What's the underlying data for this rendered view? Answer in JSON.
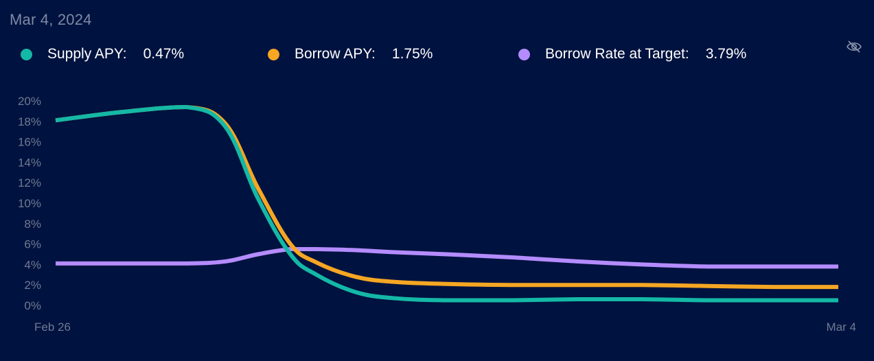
{
  "header": {
    "date": "Mar 4, 2024"
  },
  "legend": [
    {
      "label": "Supply APY:",
      "value": "0.47%",
      "color": "#14b8a6"
    },
    {
      "label": "Borrow APY:",
      "value": "1.75%",
      "color": "#f5a623"
    },
    {
      "label": "Borrow Rate at Target:",
      "value": "3.79%",
      "color": "#b48cff"
    }
  ],
  "controls": {
    "visibility_icon": "eye-slash-icon"
  },
  "colors": {
    "background": "#00123f",
    "tick_text": "#6f7a92",
    "heading_text": "#7d8aa6"
  },
  "chart_data": {
    "type": "line",
    "x": [
      0,
      0.5,
      1.0,
      1.3,
      1.55,
      1.8,
      2.0,
      2.3,
      2.6,
      3.0,
      3.5,
      4.0,
      4.5,
      5.0,
      5.5,
      6.0
    ],
    "x_tick_labels": [
      {
        "x": 0,
        "label": "Feb 26"
      },
      {
        "x": 6,
        "label": "Mar 4"
      }
    ],
    "ylim": [
      0,
      20
    ],
    "yticks": [
      0,
      2,
      4,
      6,
      8,
      10,
      12,
      14,
      16,
      18,
      20
    ],
    "ytick_labels": [
      "0%",
      "2%",
      "4%",
      "6%",
      "8%",
      "10%",
      "12%",
      "14%",
      "16%",
      "18%",
      "20%"
    ],
    "legend_position": "top",
    "grid": false,
    "series": [
      {
        "name": "Supply APY",
        "color": "#14b8a6",
        "values": [
          18.1,
          18.9,
          19.4,
          17.5,
          10.5,
          5.0,
          3.0,
          1.3,
          0.7,
          0.5,
          0.5,
          0.6,
          0.6,
          0.5,
          0.5,
          0.5
        ]
      },
      {
        "name": "Borrow APY",
        "color": "#f5a623",
        "values": [
          18.1,
          18.9,
          19.4,
          17.8,
          11.5,
          6.0,
          4.2,
          2.8,
          2.3,
          2.1,
          2.0,
          2.0,
          2.0,
          1.9,
          1.8,
          1.8
        ]
      },
      {
        "name": "Borrow Rate at Target",
        "color": "#b48cff",
        "values": [
          4.1,
          4.1,
          4.1,
          4.3,
          5.0,
          5.5,
          5.5,
          5.4,
          5.2,
          5.0,
          4.7,
          4.3,
          4.0,
          3.8,
          3.8,
          3.8
        ]
      }
    ]
  }
}
